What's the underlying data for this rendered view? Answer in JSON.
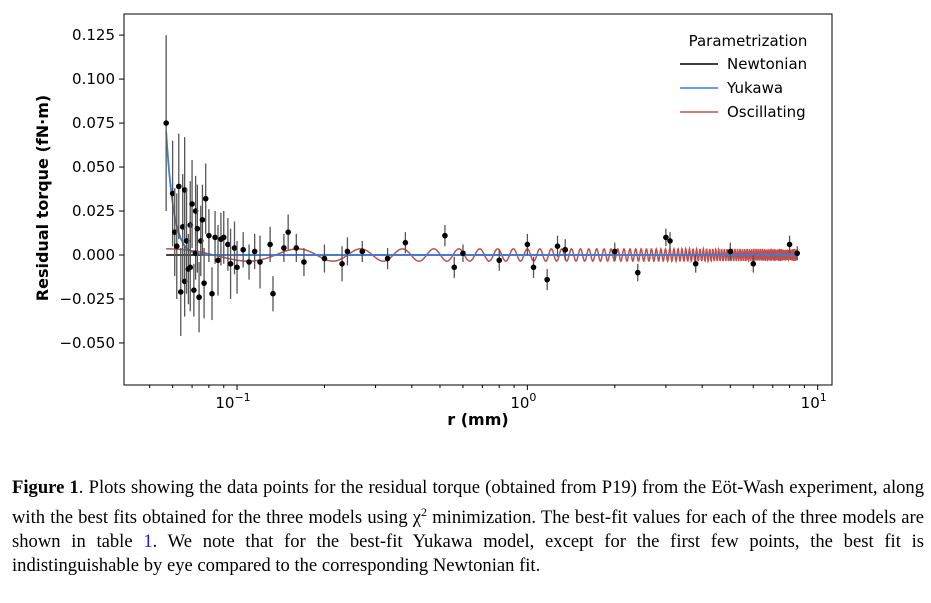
{
  "chart_data": {
    "type": "scatter",
    "title": "",
    "xlabel": "r (mm)",
    "ylabel": "Residual torque (fN·m)",
    "xscale": "log",
    "xlim": [
      0.0408,
      11.2
    ],
    "ylim": [
      -0.0739,
      0.137
    ],
    "grid": false,
    "xticks": [
      {
        "value": 0.1,
        "base": "10",
        "exp": "−1"
      },
      {
        "value": 1,
        "base": "10",
        "exp": "0"
      },
      {
        "value": 10,
        "base": "10",
        "exp": "1"
      }
    ],
    "yticks": [
      {
        "value": 0.125,
        "label": "0.125"
      },
      {
        "value": 0.1,
        "label": "0.100"
      },
      {
        "value": 0.075,
        "label": "0.075"
      },
      {
        "value": 0.05,
        "label": "0.050"
      },
      {
        "value": 0.025,
        "label": "0.025"
      },
      {
        "value": 0,
        "label": "0.000"
      },
      {
        "value": -0.025,
        "label": "−0.025"
      },
      {
        "value": -0.05,
        "label": "−0.050"
      }
    ],
    "legend": {
      "title": "Parametrization",
      "placement": "top-right",
      "entries": [
        {
          "name": "Newtonian",
          "color": "#000000"
        },
        {
          "name": "Yukawa",
          "color": "#3b7ddd"
        },
        {
          "name": "Oscillating",
          "color": "#c0504d"
        }
      ]
    },
    "data_points": {
      "x": [
        0.057,
        0.06,
        0.061,
        0.062,
        0.063,
        0.064,
        0.065,
        0.066,
        0.066,
        0.067,
        0.068,
        0.069,
        0.069,
        0.07,
        0.071,
        0.072,
        0.072,
        0.073,
        0.074,
        0.075,
        0.076,
        0.077,
        0.078,
        0.08,
        0.082,
        0.084,
        0.086,
        0.088,
        0.09,
        0.093,
        0.095,
        0.098,
        0.1,
        0.105,
        0.11,
        0.115,
        0.12,
        0.13,
        0.133,
        0.145,
        0.15,
        0.16,
        0.17,
        0.2,
        0.23,
        0.24,
        0.27,
        0.33,
        0.38,
        0.52,
        0.56,
        0.6,
        0.8,
        1.0,
        1.05,
        1.17,
        1.27,
        1.35,
        2.0,
        2.4,
        3.0,
        3.1,
        3.8,
        5.0,
        6.0,
        8.0,
        8.5
      ],
      "y": [
        0.075,
        0.035,
        0.013,
        0.005,
        0.039,
        -0.021,
        0.016,
        0.037,
        -0.015,
        0.008,
        -0.008,
        0.017,
        -0.007,
        0.029,
        -0.02,
        0.025,
        0.001,
        0.015,
        -0.024,
        0.008,
        0.02,
        -0.016,
        0.032,
        0.011,
        -0.022,
        0.01,
        -0.003,
        0.009,
        0.01,
        0.006,
        -0.005,
        0.004,
        -0.007,
        0.003,
        -0.004,
        0.002,
        -0.004,
        0.006,
        -0.022,
        0.004,
        0.013,
        0.004,
        -0.004,
        -0.002,
        -0.005,
        0.002,
        0.002,
        -0.002,
        0.007,
        0.011,
        -0.007,
        0.001,
        -0.003,
        0.006,
        -0.007,
        -0.014,
        0.005,
        0.003,
        0.002,
        -0.01,
        0.01,
        0.008,
        -0.005,
        0.002,
        -0.005,
        0.006,
        0.001
      ],
      "yerr": [
        0.05,
        0.03,
        0.025,
        0.03,
        0.03,
        0.025,
        0.03,
        0.03,
        0.02,
        0.03,
        0.02,
        0.025,
        0.025,
        0.025,
        0.015,
        0.02,
        0.015,
        0.025,
        0.02,
        0.02,
        0.02,
        0.02,
        0.02,
        0.015,
        0.015,
        0.015,
        0.02,
        0.015,
        0.015,
        0.015,
        0.02,
        0.015,
        0.015,
        0.01,
        0.01,
        0.01,
        0.015,
        0.01,
        0.01,
        0.008,
        0.01,
        0.008,
        0.008,
        0.008,
        0.01,
        0.008,
        0.006,
        0.006,
        0.006,
        0.006,
        0.006,
        0.005,
        0.006,
        0.006,
        0.006,
        0.006,
        0.006,
        0.006,
        0.005,
        0.005,
        0.005,
        0.005,
        0.005,
        0.005,
        0.005,
        0.005,
        0.004
      ]
    },
    "x_range_of_fits": [
      0.057,
      8.5
    ]
  },
  "caption": {
    "label": "Figure 1",
    "text_before_ref": ". Plots showing the data points for the residual torque (obtained from P19) from the Eöt-Wash experiment, along with the best fits obtained for the three models using χ",
    "sup": "2",
    "text_mid": " minimization. The best-fit values for each of the three models are shown in table ",
    "ref": "1",
    "text_after_ref": ". We note that for the best-fit Yukawa model, except for the first few points, the best fit is indistinguishable by eye compared to the corresponding Newtonian fit."
  }
}
